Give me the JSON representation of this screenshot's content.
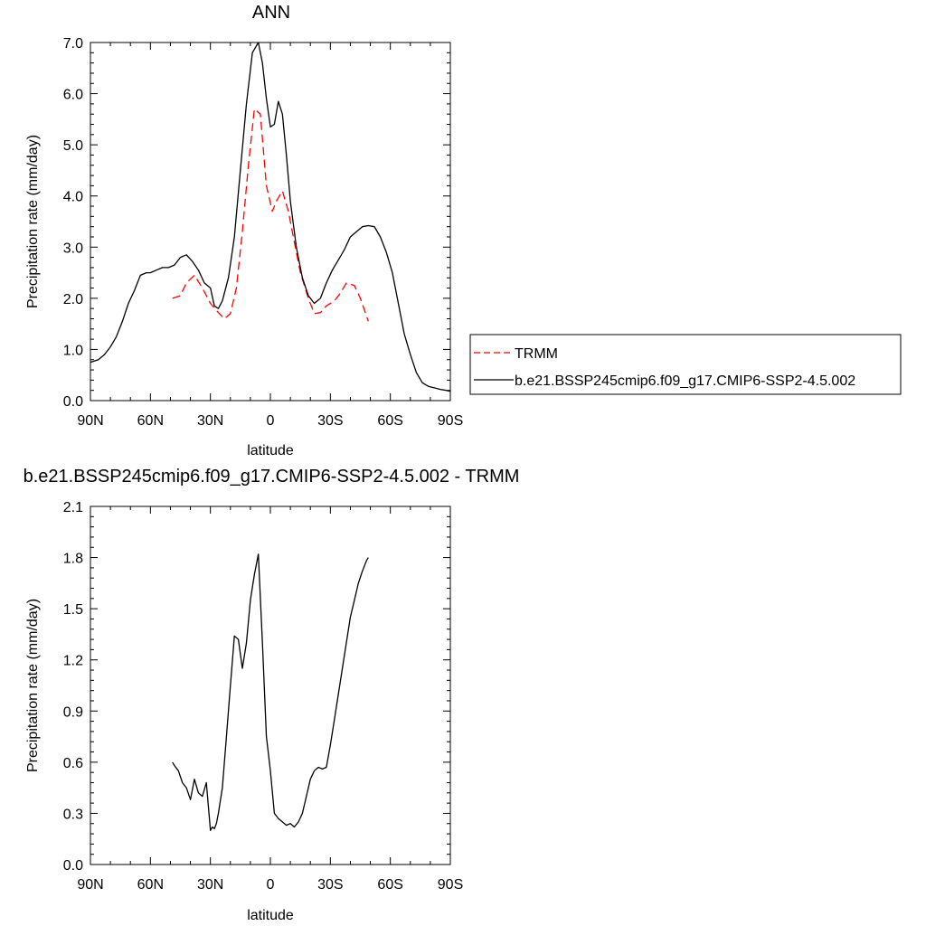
{
  "chart_data": [
    {
      "type": "line",
      "title": "ANN",
      "xlabel": "latitude",
      "ylabel": "Precipitation rate (mm/day)",
      "xlim": [
        90,
        -90
      ],
      "ylim": [
        0,
        7
      ],
      "x_ticks": [
        90,
        60,
        30,
        0,
        -30,
        -60,
        -90
      ],
      "x_tick_labels": [
        "90N",
        "60N",
        "30N",
        "0",
        "30S",
        "60S",
        "90S"
      ],
      "y_ticks": [
        0,
        1,
        2,
        3,
        4,
        5,
        6,
        7
      ],
      "y_tick_labels": [
        "0.0",
        "1.0",
        "2.0",
        "3.0",
        "4.0",
        "5.0",
        "6.0",
        "7.0"
      ],
      "grid": false,
      "legend_placement": "right",
      "series": [
        {
          "name": "TRMM",
          "style": "dashed",
          "color": "#ff0000",
          "x": [
            49,
            45,
            42,
            38,
            34,
            30,
            26,
            23,
            20,
            17,
            14,
            11,
            8,
            5,
            2,
            -1,
            -3,
            -6,
            -9,
            -12,
            -15,
            -19,
            -22,
            -25,
            -28,
            -32,
            -35,
            -38,
            -42,
            -45,
            -49
          ],
          "y": [
            2.0,
            2.05,
            2.3,
            2.45,
            2.2,
            1.9,
            1.72,
            1.6,
            1.7,
            2.2,
            3.3,
            4.6,
            5.7,
            5.6,
            4.2,
            3.7,
            3.9,
            4.1,
            3.7,
            3.1,
            2.5,
            2.0,
            1.7,
            1.72,
            1.85,
            1.95,
            2.1,
            2.3,
            2.25,
            2.0,
            1.55
          ]
        },
        {
          "name": "b.e21.BSSP245cmip6.f09_g17.CMIP6-SSP2-4.5.002",
          "style": "solid",
          "color": "#000000",
          "x": [
            90,
            86,
            83,
            80,
            77,
            74,
            71,
            68,
            65,
            62,
            60,
            57,
            54,
            51,
            48,
            45,
            42,
            39,
            36,
            33,
            30,
            28,
            26,
            24,
            21,
            18,
            15,
            12,
            9,
            6,
            4,
            2,
            0,
            -2,
            -4,
            -6,
            -8,
            -10,
            -13,
            -16,
            -19,
            -22,
            -25,
            -28,
            -31,
            -34,
            -37,
            -40,
            -43,
            -46,
            -49,
            -52,
            -55,
            -58,
            -61,
            -64,
            -67,
            -70,
            -73,
            -76,
            -79,
            -82,
            -85,
            -88,
            -90
          ],
          "y": [
            0.75,
            0.8,
            0.9,
            1.05,
            1.25,
            1.55,
            1.9,
            2.15,
            2.45,
            2.5,
            2.5,
            2.55,
            2.6,
            2.6,
            2.65,
            2.8,
            2.85,
            2.72,
            2.55,
            2.3,
            2.2,
            1.85,
            1.8,
            1.95,
            2.4,
            3.2,
            4.5,
            5.8,
            6.8,
            7.0,
            6.6,
            5.9,
            5.35,
            5.4,
            5.85,
            5.6,
            4.8,
            3.9,
            3.0,
            2.4,
            2.05,
            1.9,
            2.0,
            2.3,
            2.55,
            2.75,
            2.95,
            3.2,
            3.3,
            3.4,
            3.42,
            3.4,
            3.2,
            2.9,
            2.5,
            1.9,
            1.3,
            0.9,
            0.55,
            0.35,
            0.28,
            0.25,
            0.22,
            0.2,
            0.18
          ]
        }
      ]
    },
    {
      "type": "line",
      "title": "b.e21.BSSP245cmip6.f09_g17.CMIP6-SSP2-4.5.002 - TRMM",
      "xlabel": "latitude",
      "ylabel": "Precipitation rate (mm/day)",
      "xlim": [
        90,
        -90
      ],
      "ylim": [
        0,
        2.1
      ],
      "x_ticks": [
        90,
        60,
        30,
        0,
        -30,
        -60,
        -90
      ],
      "x_tick_labels": [
        "90N",
        "60N",
        "30N",
        "0",
        "30S",
        "60S",
        "90S"
      ],
      "y_ticks": [
        0,
        0.3,
        0.6,
        0.9,
        1.2,
        1.5,
        1.8,
        2.1
      ],
      "y_tick_labels": [
        "0.0",
        "0.3",
        "0.6",
        "0.9",
        "1.2",
        "1.5",
        "1.8",
        "2.1"
      ],
      "grid": false,
      "series": [
        {
          "style": "solid",
          "color": "#000000",
          "x": [
            49,
            48,
            46,
            44,
            42,
            40,
            38,
            36,
            34,
            32,
            30,
            29,
            28,
            27,
            26,
            24,
            22,
            20,
            18,
            16,
            14,
            12,
            10,
            8,
            6,
            4,
            2,
            0,
            -2,
            -4,
            -6,
            -8,
            -10,
            -12,
            -14,
            -16,
            -18,
            -20,
            -22,
            -24,
            -26,
            -28,
            -30,
            -32,
            -34,
            -36,
            -38,
            -40,
            -42,
            -44,
            -46,
            -48,
            -49
          ],
          "y": [
            0.6,
            0.58,
            0.55,
            0.48,
            0.45,
            0.38,
            0.5,
            0.42,
            0.4,
            0.48,
            0.2,
            0.22,
            0.21,
            0.24,
            0.3,
            0.45,
            0.75,
            1.05,
            1.34,
            1.32,
            1.15,
            1.3,
            1.55,
            1.7,
            1.82,
            1.3,
            0.75,
            0.55,
            0.3,
            0.27,
            0.25,
            0.23,
            0.24,
            0.22,
            0.25,
            0.3,
            0.4,
            0.5,
            0.55,
            0.57,
            0.56,
            0.57,
            0.7,
            0.85,
            1.0,
            1.15,
            1.3,
            1.45,
            1.55,
            1.65,
            1.72,
            1.78,
            1.8
          ]
        }
      ]
    }
  ],
  "legend": {
    "entries": [
      "TRMM",
      "b.e21.BSSP245cmip6.f09_g17.CMIP6-SSP2-4.5.002"
    ]
  }
}
